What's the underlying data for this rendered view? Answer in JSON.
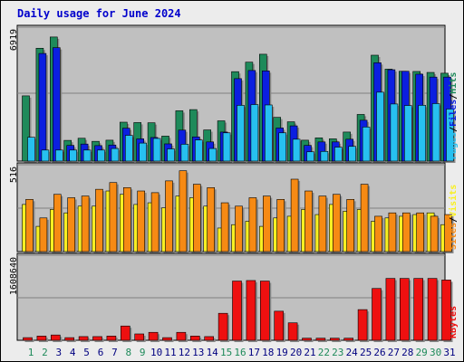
{
  "title": "Daily usage for June 2024",
  "colors": {
    "background": "#ececec",
    "panel": "#c0c0c0",
    "title": "#0000cc",
    "hits": "#1e8a5a",
    "files": "#0b1fe0",
    "pages": "#27c0f0",
    "visits": "#f8f022",
    "sites": "#f68a14",
    "kbytes": "#ee1010",
    "weekend": "#1e8a5a",
    "weekday": "#000080"
  },
  "chart_data": [
    {
      "type": "bar",
      "name": "hits-files-pages",
      "categories": [
        "1",
        "2",
        "3",
        "4",
        "5",
        "6",
        "7",
        "8",
        "9",
        "10",
        "11",
        "12",
        "13",
        "14",
        "15",
        "16",
        "17",
        "18",
        "19",
        "20",
        "21",
        "22",
        "23",
        "24",
        "25",
        "26",
        "27",
        "28",
        "29",
        "30",
        "31"
      ],
      "weekend_days": [
        "1",
        "2",
        "8",
        "9",
        "15",
        "16",
        "22",
        "23",
        "29",
        "30"
      ],
      "ymax_label": "6919",
      "ylim": [
        0,
        6919
      ],
      "right_labels": [
        "Pages",
        "Files",
        "Hits"
      ],
      "series": [
        {
          "name": "Hits",
          "color_key": "hits",
          "values": [
            3370,
            5830,
            6410,
            1070,
            1180,
            1020,
            1080,
            2010,
            1990,
            1980,
            1290,
            2600,
            2660,
            1610,
            2080,
            4620,
            5110,
            5520,
            2260,
            2030,
            1080,
            1200,
            1150,
            1500,
            2410,
            5470,
            4750,
            4640,
            4630,
            4580,
            4540
          ]
        },
        {
          "name": "Files",
          "color_key": "files",
          "values": [
            0,
            5560,
            5860,
            810,
            880,
            800,
            830,
            1700,
            1150,
            1220,
            890,
            1600,
            1250,
            990,
            1500,
            4260,
            4680,
            4660,
            1710,
            1820,
            810,
            990,
            990,
            1130,
            2110,
            5080,
            4720,
            4640,
            4490,
            4340,
            4340
          ]
        },
        {
          "name": "Pages",
          "color_key": "pages",
          "values": [
            1230,
            570,
            570,
            570,
            570,
            570,
            650,
            1330,
            930,
            1170,
            630,
            870,
            1090,
            650,
            1460,
            2880,
            2920,
            2900,
            1460,
            1130,
            480,
            500,
            720,
            760,
            1760,
            3560,
            2950,
            2870,
            2880,
            2970,
            2690
          ]
        }
      ]
    },
    {
      "type": "bar",
      "name": "visits-sites",
      "categories": [
        "1",
        "2",
        "3",
        "4",
        "5",
        "6",
        "7",
        "8",
        "9",
        "10",
        "11",
        "12",
        "13",
        "14",
        "15",
        "16",
        "17",
        "18",
        "19",
        "20",
        "21",
        "22",
        "23",
        "24",
        "25",
        "26",
        "27",
        "28",
        "29",
        "30",
        "31"
      ],
      "ymax_label": "516",
      "ylim": [
        0,
        516
      ],
      "right_labels": [
        "Sites",
        "Visits"
      ],
      "series": [
        {
          "name": "Visits",
          "color_key": "visits",
          "values": [
            280,
            150,
            250,
            230,
            270,
            270,
            360,
            340,
            280,
            290,
            260,
            330,
            320,
            270,
            140,
            160,
            180,
            150,
            200,
            210,
            250,
            220,
            280,
            240,
            250,
            180,
            200,
            210,
            220,
            230,
            160
          ]
        },
        {
          "name": "Sites",
          "color_key": "sites",
          "values": [
            310,
            200,
            340,
            320,
            330,
            370,
            410,
            380,
            360,
            350,
            420,
            480,
            400,
            380,
            290,
            270,
            320,
            330,
            310,
            430,
            360,
            330,
            340,
            310,
            400,
            210,
            230,
            230,
            230,
            210,
            220
          ]
        }
      ]
    },
    {
      "type": "bar",
      "name": "kbytes",
      "categories": [
        "1",
        "2",
        "3",
        "4",
        "5",
        "6",
        "7",
        "8",
        "9",
        "10",
        "11",
        "12",
        "13",
        "14",
        "15",
        "16",
        "17",
        "18",
        "19",
        "20",
        "21",
        "22",
        "23",
        "24",
        "25",
        "26",
        "27",
        "28",
        "29",
        "30",
        "31"
      ],
      "ymax_label": "1608640",
      "ylim": [
        0,
        1608640
      ],
      "right_labels": [
        "KBytes"
      ],
      "series": [
        {
          "name": "KBytes",
          "color_key": "kbytes",
          "values": [
            50000,
            80000,
            100000,
            50000,
            70000,
            70000,
            80000,
            270000,
            120000,
            150000,
            50000,
            150000,
            80000,
            70000,
            510000,
            1120000,
            1130000,
            1120000,
            550000,
            330000,
            40000,
            40000,
            40000,
            40000,
            580000,
            980000,
            1170000,
            1170000,
            1170000,
            1170000,
            1140000
          ]
        }
      ]
    }
  ]
}
